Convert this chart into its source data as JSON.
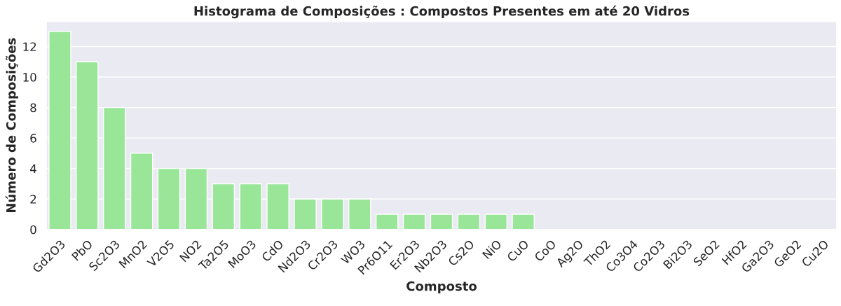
{
  "chart_data": {
    "type": "bar",
    "title": "Histograma de Composições : Compostos Presentes em até 20 Vidros",
    "xlabel": "Composto",
    "ylabel": "Número de Composições",
    "categories": [
      "Gd2O3",
      "PbO",
      "Sc2O3",
      "MnO2",
      "V2O5",
      "NO2",
      "Ta2O5",
      "MoO3",
      "CdO",
      "Nd2O3",
      "Cr2O3",
      "WO3",
      "Pr6O11",
      "Er2O3",
      "Nb2O3",
      "Cs2O",
      "NiO",
      "CuO",
      "CoO",
      "Ag2O",
      "ThO2",
      "Co3O4",
      "Co2O3",
      "Bi2O3",
      "SeO2",
      "HfO2",
      "Ga2O3",
      "GeO2",
      "Cu2O"
    ],
    "values": [
      13,
      11,
      8,
      5,
      4,
      4,
      3,
      3,
      3,
      2,
      2,
      2,
      1,
      1,
      1,
      1,
      1,
      1,
      0,
      0,
      0,
      0,
      0,
      0,
      0,
      0,
      0,
      0,
      0
    ],
    "color": "#99e699",
    "ylim": [
      0,
      13.65
    ],
    "yticks": [
      0,
      2,
      4,
      6,
      8,
      10,
      12
    ],
    "grid": "y"
  }
}
